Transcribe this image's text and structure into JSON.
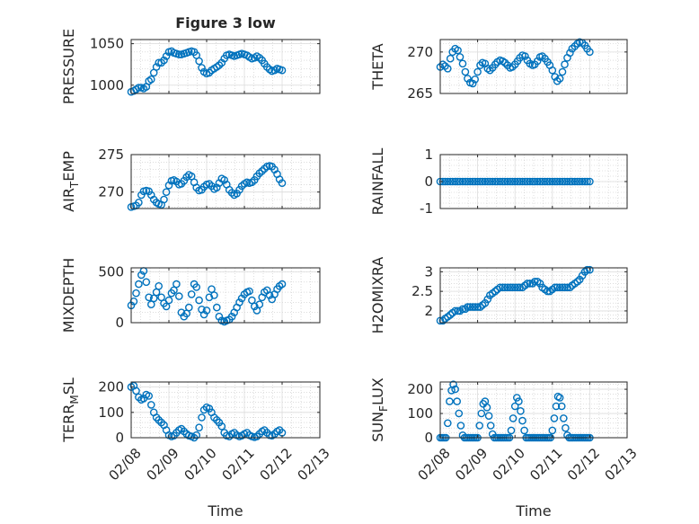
{
  "figure": {
    "title": "Figure 3 low",
    "marker_color": "#0072BD",
    "x_axis_label": "Time",
    "x_ticks": [
      "02/08",
      "02/09",
      "02/10",
      "02/11",
      "02/12",
      "02/13"
    ]
  },
  "chart_data": [
    {
      "type": "scatter",
      "ylabel": "PRESSURE",
      "title": "Figure 3 low",
      "xlim": [
        "02/08",
        "02/13"
      ],
      "ylim": [
        990,
        1055
      ],
      "yticks": [
        1000,
        1050
      ],
      "grid": true,
      "minor_grid": true,
      "x": [
        0,
        0.07,
        0.13,
        0.2,
        0.27,
        0.33,
        0.4,
        0.47,
        0.53,
        0.6,
        0.67,
        0.73,
        0.8,
        0.87,
        0.93,
        1.0,
        1.07,
        1.13,
        1.2,
        1.27,
        1.33,
        1.4,
        1.47,
        1.53,
        1.6,
        1.67,
        1.73,
        1.8,
        1.87,
        1.93,
        2.0,
        2.07,
        2.13,
        2.2,
        2.27,
        2.33,
        2.4,
        2.47,
        2.53,
        2.6,
        2.67,
        2.73,
        2.8,
        2.87,
        2.93,
        3.0,
        3.07,
        3.13,
        3.2,
        3.27,
        3.33,
        3.4,
        3.47,
        3.53,
        3.6,
        3.67,
        3.73,
        3.8,
        3.87,
        3.93,
        4.0
      ],
      "y": [
        992,
        993,
        995,
        997,
        997,
        996,
        998,
        1005,
        1007,
        1015,
        1022,
        1027,
        1027,
        1030,
        1035,
        1040,
        1041,
        1039,
        1038,
        1037,
        1037,
        1038,
        1039,
        1040,
        1041,
        1040,
        1036,
        1029,
        1021,
        1016,
        1014,
        1015,
        1018,
        1020,
        1022,
        1024,
        1027,
        1032,
        1036,
        1037,
        1036,
        1035,
        1036,
        1037,
        1038,
        1037,
        1036,
        1034,
        1032,
        1033,
        1035,
        1033,
        1030,
        1026,
        1022,
        1019,
        1017,
        1018,
        1020,
        1019,
        1018
      ]
    },
    {
      "type": "scatter",
      "ylabel": "THETA",
      "xlim": [
        "02/08",
        "02/13"
      ],
      "ylim": [
        265,
        271.5
      ],
      "yticks": [
        265,
        270
      ],
      "grid": true,
      "minor_grid": true,
      "x": [
        0,
        0.07,
        0.13,
        0.2,
        0.27,
        0.33,
        0.4,
        0.47,
        0.53,
        0.6,
        0.67,
        0.73,
        0.8,
        0.87,
        0.93,
        1.0,
        1.07,
        1.13,
        1.2,
        1.27,
        1.33,
        1.4,
        1.47,
        1.53,
        1.6,
        1.67,
        1.73,
        1.8,
        1.87,
        1.93,
        2.0,
        2.07,
        2.13,
        2.2,
        2.27,
        2.33,
        2.4,
        2.47,
        2.53,
        2.6,
        2.67,
        2.73,
        2.8,
        2.87,
        2.93,
        3.0,
        3.07,
        3.13,
        3.2,
        3.27,
        3.33,
        3.4,
        3.47,
        3.53,
        3.6,
        3.67,
        3.73,
        3.8,
        3.87,
        3.93,
        4.0
      ],
      "y": [
        268.2,
        268.5,
        268.3,
        268.0,
        269.2,
        270.0,
        270.4,
        270.2,
        269.4,
        268.6,
        267.6,
        266.8,
        266.3,
        266.2,
        266.7,
        267.6,
        268.4,
        268.7,
        268.6,
        268.0,
        267.8,
        268.1,
        268.5,
        268.8,
        269.0,
        268.9,
        268.7,
        268.4,
        268.1,
        268.2,
        268.5,
        268.9,
        269.3,
        269.6,
        269.5,
        269.0,
        268.6,
        268.4,
        268.5,
        268.9,
        269.4,
        269.5,
        269.2,
        268.8,
        268.4,
        267.8,
        267.0,
        266.5,
        266.8,
        267.6,
        268.5,
        269.3,
        269.9,
        270.4,
        270.7,
        271.0,
        271.2,
        271.1,
        270.8,
        270.4,
        270.0
      ]
    },
    {
      "type": "scatter",
      "ylabel": "AIR_TEMP",
      "xlim": [
        "02/08",
        "02/13"
      ],
      "ylim": [
        267.8,
        275
      ],
      "yticks": [
        270,
        275
      ],
      "grid": true,
      "minor_grid": true,
      "x": [
        0,
        0.07,
        0.13,
        0.2,
        0.27,
        0.33,
        0.4,
        0.47,
        0.53,
        0.6,
        0.67,
        0.73,
        0.8,
        0.87,
        0.93,
        1.0,
        1.07,
        1.13,
        1.2,
        1.27,
        1.33,
        1.4,
        1.47,
        1.53,
        1.6,
        1.67,
        1.73,
        1.8,
        1.87,
        1.93,
        2.0,
        2.07,
        2.13,
        2.2,
        2.27,
        2.33,
        2.4,
        2.47,
        2.53,
        2.6,
        2.67,
        2.73,
        2.8,
        2.87,
        2.93,
        3.0,
        3.07,
        3.13,
        3.2,
        3.27,
        3.33,
        3.4,
        3.47,
        3.53,
        3.6,
        3.67,
        3.73,
        3.8,
        3.87,
        3.93,
        4.0
      ],
      "y": [
        268.0,
        268.1,
        268.2,
        268.6,
        269.6,
        270.1,
        270.2,
        270.1,
        269.6,
        269.0,
        268.6,
        268.4,
        268.3,
        269.0,
        270.0,
        270.9,
        271.5,
        271.6,
        271.4,
        271.0,
        271.1,
        271.5,
        272.0,
        272.3,
        272.1,
        271.3,
        270.6,
        270.2,
        270.3,
        270.7,
        271.0,
        271.1,
        270.8,
        270.4,
        270.6,
        271.2,
        271.8,
        271.6,
        271.0,
        270.3,
        269.9,
        269.6,
        269.8,
        270.3,
        270.8,
        271.1,
        271.3,
        271.2,
        271.3,
        271.6,
        272.1,
        272.5,
        272.8,
        273.1,
        273.4,
        273.5,
        273.4,
        273.0,
        272.4,
        271.7,
        271.2
      ]
    },
    {
      "type": "scatter",
      "ylabel": "RAINFALL",
      "xlim": [
        "02/08",
        "02/13"
      ],
      "ylim": [
        -1,
        1
      ],
      "yticks": [
        -1,
        0,
        1
      ],
      "grid": true,
      "minor_grid": true,
      "x": [
        0,
        0.07,
        0.13,
        0.2,
        0.27,
        0.33,
        0.4,
        0.47,
        0.53,
        0.6,
        0.67,
        0.73,
        0.8,
        0.87,
        0.93,
        1.0,
        1.07,
        1.13,
        1.2,
        1.27,
        1.33,
        1.4,
        1.47,
        1.53,
        1.6,
        1.67,
        1.73,
        1.8,
        1.87,
        1.93,
        2.0,
        2.07,
        2.13,
        2.2,
        2.27,
        2.33,
        2.4,
        2.47,
        2.53,
        2.6,
        2.67,
        2.73,
        2.8,
        2.87,
        2.93,
        3.0,
        3.07,
        3.13,
        3.2,
        3.27,
        3.33,
        3.4,
        3.47,
        3.53,
        3.6,
        3.67,
        3.73,
        3.8,
        3.87,
        3.93,
        4.0
      ],
      "y": [
        0,
        0,
        0,
        0,
        0,
        0,
        0,
        0,
        0,
        0,
        0,
        0,
        0,
        0,
        0,
        0,
        0,
        0,
        0,
        0,
        0,
        0,
        0,
        0,
        0,
        0,
        0,
        0,
        0,
        0,
        0,
        0,
        0,
        0,
        0,
        0,
        0,
        0,
        0,
        0,
        0,
        0,
        0,
        0,
        0,
        0,
        0,
        0,
        0,
        0,
        0,
        0,
        0,
        0,
        0,
        0,
        0,
        0,
        0,
        0,
        0
      ]
    },
    {
      "type": "scatter",
      "ylabel": "MIXDEPTH",
      "xlim": [
        "02/08",
        "02/13"
      ],
      "ylim": [
        0,
        540
      ],
      "yticks": [
        0,
        500
      ],
      "grid": true,
      "minor_grid": true,
      "x": [
        0,
        0.07,
        0.13,
        0.2,
        0.27,
        0.33,
        0.4,
        0.47,
        0.53,
        0.6,
        0.67,
        0.73,
        0.8,
        0.87,
        0.93,
        1.0,
        1.07,
        1.13,
        1.2,
        1.27,
        1.33,
        1.4,
        1.47,
        1.53,
        1.6,
        1.67,
        1.73,
        1.8,
        1.87,
        1.93,
        2.0,
        2.07,
        2.13,
        2.2,
        2.27,
        2.33,
        2.4,
        2.47,
        2.53,
        2.6,
        2.67,
        2.73,
        2.8,
        2.87,
        2.93,
        3.0,
        3.07,
        3.13,
        3.2,
        3.27,
        3.33,
        3.4,
        3.47,
        3.53,
        3.6,
        3.67,
        3.73,
        3.8,
        3.87,
        3.93,
        4.0
      ],
      "y": [
        170,
        210,
        290,
        380,
        470,
        510,
        400,
        250,
        180,
        240,
        300,
        360,
        250,
        190,
        160,
        220,
        290,
        320,
        380,
        260,
        100,
        60,
        90,
        150,
        280,
        380,
        350,
        220,
        130,
        80,
        120,
        250,
        330,
        270,
        150,
        60,
        20,
        10,
        20,
        30,
        60,
        100,
        150,
        200,
        240,
        280,
        300,
        310,
        220,
        160,
        120,
        180,
        250,
        300,
        320,
        270,
        230,
        280,
        330,
        360,
        380
      ]
    },
    {
      "type": "scatter",
      "ylabel": "H2OMIXRA",
      "xlim": [
        "02/08",
        "02/13"
      ],
      "ylim": [
        1.7,
        3.1
      ],
      "yticks": [
        2,
        2.5,
        3
      ],
      "grid": true,
      "minor_grid": true,
      "x": [
        0,
        0.07,
        0.13,
        0.2,
        0.27,
        0.33,
        0.4,
        0.47,
        0.53,
        0.6,
        0.67,
        0.73,
        0.8,
        0.87,
        0.93,
        1.0,
        1.07,
        1.13,
        1.2,
        1.27,
        1.33,
        1.4,
        1.47,
        1.53,
        1.6,
        1.67,
        1.73,
        1.8,
        1.87,
        1.93,
        2.0,
        2.07,
        2.13,
        2.2,
        2.27,
        2.33,
        2.4,
        2.47,
        2.53,
        2.6,
        2.67,
        2.73,
        2.8,
        2.87,
        2.93,
        3.0,
        3.07,
        3.13,
        3.2,
        3.27,
        3.33,
        3.4,
        3.47,
        3.53,
        3.6,
        3.67,
        3.73,
        3.8,
        3.87,
        3.93,
        4.0
      ],
      "y": [
        1.75,
        1.75,
        1.8,
        1.85,
        1.9,
        1.95,
        2.0,
        2.0,
        2.0,
        2.05,
        2.05,
        2.1,
        2.1,
        2.1,
        2.1,
        2.1,
        2.1,
        2.15,
        2.2,
        2.3,
        2.4,
        2.45,
        2.5,
        2.55,
        2.6,
        2.6,
        2.6,
        2.6,
        2.6,
        2.6,
        2.6,
        2.6,
        2.6,
        2.6,
        2.65,
        2.7,
        2.7,
        2.7,
        2.75,
        2.75,
        2.7,
        2.6,
        2.55,
        2.5,
        2.5,
        2.55,
        2.6,
        2.6,
        2.6,
        2.6,
        2.6,
        2.6,
        2.6,
        2.65,
        2.7,
        2.75,
        2.8,
        2.9,
        3.0,
        3.05,
        3.05
      ]
    },
    {
      "type": "scatter",
      "ylabel": "TERR_MSL",
      "xlim": [
        "02/08",
        "02/13"
      ],
      "ylim": [
        0,
        220
      ],
      "yticks": [
        0,
        100,
        200
      ],
      "grid": true,
      "minor_grid": true,
      "x": [
        0,
        0.07,
        0.13,
        0.2,
        0.27,
        0.33,
        0.4,
        0.47,
        0.53,
        0.6,
        0.67,
        0.73,
        0.8,
        0.87,
        0.93,
        1.0,
        1.07,
        1.13,
        1.2,
        1.27,
        1.33,
        1.4,
        1.47,
        1.53,
        1.6,
        1.67,
        1.73,
        1.8,
        1.87,
        1.93,
        2.0,
        2.07,
        2.13,
        2.2,
        2.27,
        2.33,
        2.4,
        2.47,
        2.53,
        2.6,
        2.67,
        2.73,
        2.8,
        2.87,
        2.93,
        3.0,
        3.07,
        3.13,
        3.2,
        3.27,
        3.33,
        3.4,
        3.47,
        3.53,
        3.6,
        3.67,
        3.73,
        3.8,
        3.87,
        3.93,
        4.0
      ],
      "y": [
        200,
        205,
        185,
        160,
        150,
        155,
        170,
        165,
        130,
        100,
        80,
        70,
        60,
        50,
        30,
        10,
        5,
        8,
        20,
        30,
        35,
        25,
        15,
        8,
        5,
        0,
        10,
        40,
        80,
        110,
        120,
        115,
        100,
        80,
        70,
        60,
        45,
        20,
        8,
        5,
        15,
        20,
        10,
        5,
        8,
        15,
        20,
        10,
        5,
        2,
        5,
        15,
        25,
        30,
        20,
        10,
        8,
        15,
        25,
        30,
        20
      ]
    },
    {
      "type": "scatter",
      "ylabel": "SUN_FLUX",
      "xlim": [
        "02/08",
        "02/13"
      ],
      "ylim": [
        0,
        230
      ],
      "yticks": [
        0,
        100,
        200
      ],
      "grid": true,
      "minor_grid": true,
      "x": [
        0,
        0.05,
        0.1,
        0.15,
        0.2,
        0.25,
        0.3,
        0.35,
        0.4,
        0.45,
        0.5,
        0.55,
        0.6,
        0.65,
        0.7,
        0.75,
        0.8,
        0.85,
        0.9,
        0.95,
        1.0,
        1.05,
        1.1,
        1.15,
        1.2,
        1.25,
        1.3,
        1.35,
        1.4,
        1.45,
        1.5,
        1.55,
        1.6,
        1.65,
        1.7,
        1.75,
        1.8,
        1.85,
        1.9,
        1.95,
        2.0,
        2.05,
        2.1,
        2.15,
        2.2,
        2.25,
        2.3,
        2.35,
        2.4,
        2.45,
        2.5,
        2.55,
        2.6,
        2.65,
        2.7,
        2.75,
        2.8,
        2.85,
        2.9,
        2.95,
        3.0,
        3.05,
        3.1,
        3.15,
        3.2,
        3.25,
        3.3,
        3.35,
        3.4,
        3.45,
        3.5,
        3.55,
        3.6,
        3.65,
        3.7,
        3.75,
        3.8,
        3.85,
        3.9,
        3.95,
        4.0
      ],
      "y": [
        0,
        0,
        0,
        0,
        60,
        150,
        195,
        220,
        200,
        150,
        100,
        50,
        10,
        0,
        0,
        0,
        0,
        0,
        0,
        0,
        0,
        50,
        100,
        140,
        150,
        125,
        90,
        50,
        15,
        0,
        0,
        0,
        0,
        0,
        0,
        0,
        0,
        0,
        30,
        80,
        130,
        165,
        150,
        110,
        70,
        30,
        0,
        0,
        0,
        0,
        0,
        0,
        0,
        0,
        0,
        0,
        0,
        0,
        0,
        0,
        30,
        80,
        130,
        170,
        165,
        130,
        80,
        40,
        10,
        0,
        0,
        0,
        0,
        0,
        0,
        0,
        0,
        0,
        0,
        0,
        0
      ]
    }
  ]
}
